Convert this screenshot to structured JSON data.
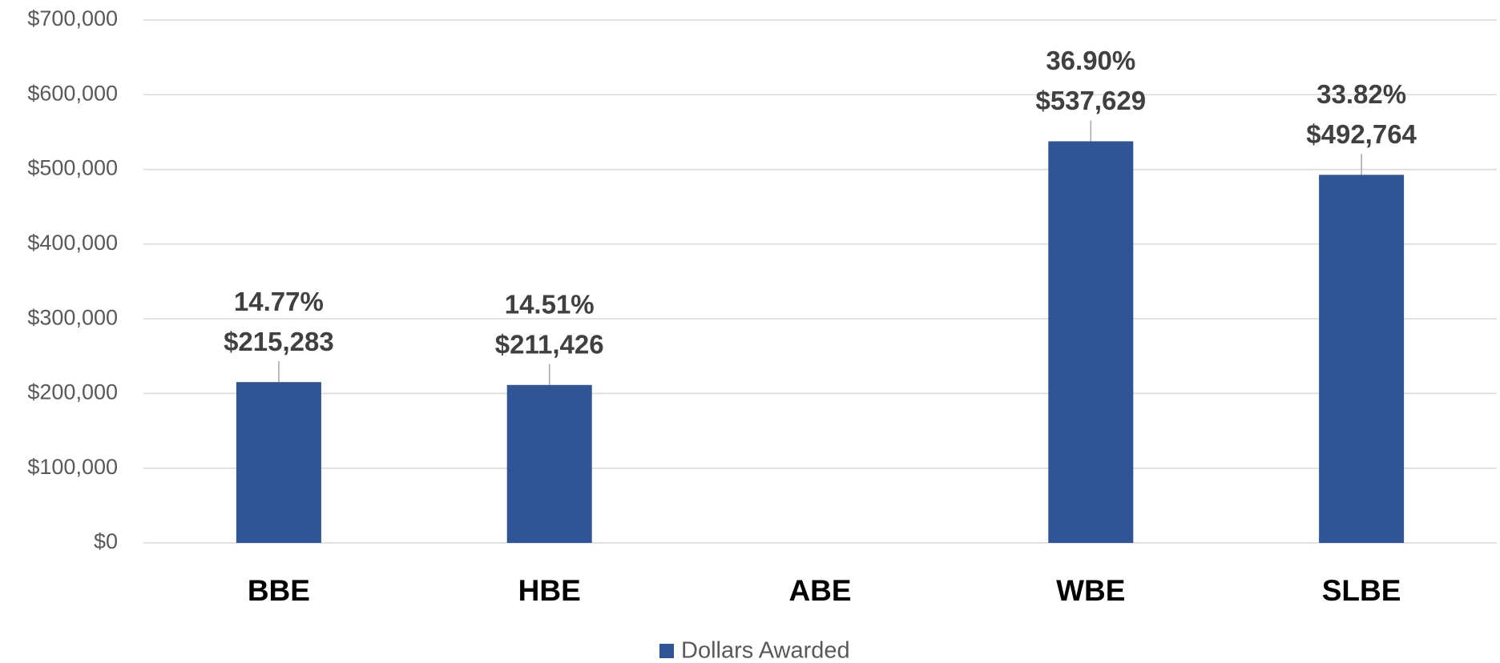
{
  "chart_data": {
    "type": "bar",
    "categories": [
      "BBE",
      "HBE",
      "ABE",
      "WBE",
      "SLBE"
    ],
    "series": [
      {
        "name": "Dollars Awarded",
        "color": "#2f5597",
        "values": [
          215283,
          211426,
          null,
          537629,
          492764
        ],
        "value_labels": [
          "$215,283",
          "$211,426",
          null,
          "$537,629",
          "$492,764"
        ],
        "percent_labels": [
          "14.77%",
          "14.51%",
          null,
          "36.90%",
          "33.82%"
        ]
      }
    ],
    "ylim": [
      0,
      700000
    ],
    "yticks": [
      {
        "value": 0,
        "label": "$0"
      },
      {
        "value": 100000,
        "label": "$100,000"
      },
      {
        "value": 200000,
        "label": "$200,000"
      },
      {
        "value": 300000,
        "label": "$300,000"
      },
      {
        "value": 400000,
        "label": "$400,000"
      },
      {
        "value": 500000,
        "label": "$500,000"
      },
      {
        "value": 600000,
        "label": "$600,000"
      },
      {
        "value": 700000,
        "label": "$700,000"
      }
    ],
    "grid": true,
    "legend": "bottom"
  }
}
